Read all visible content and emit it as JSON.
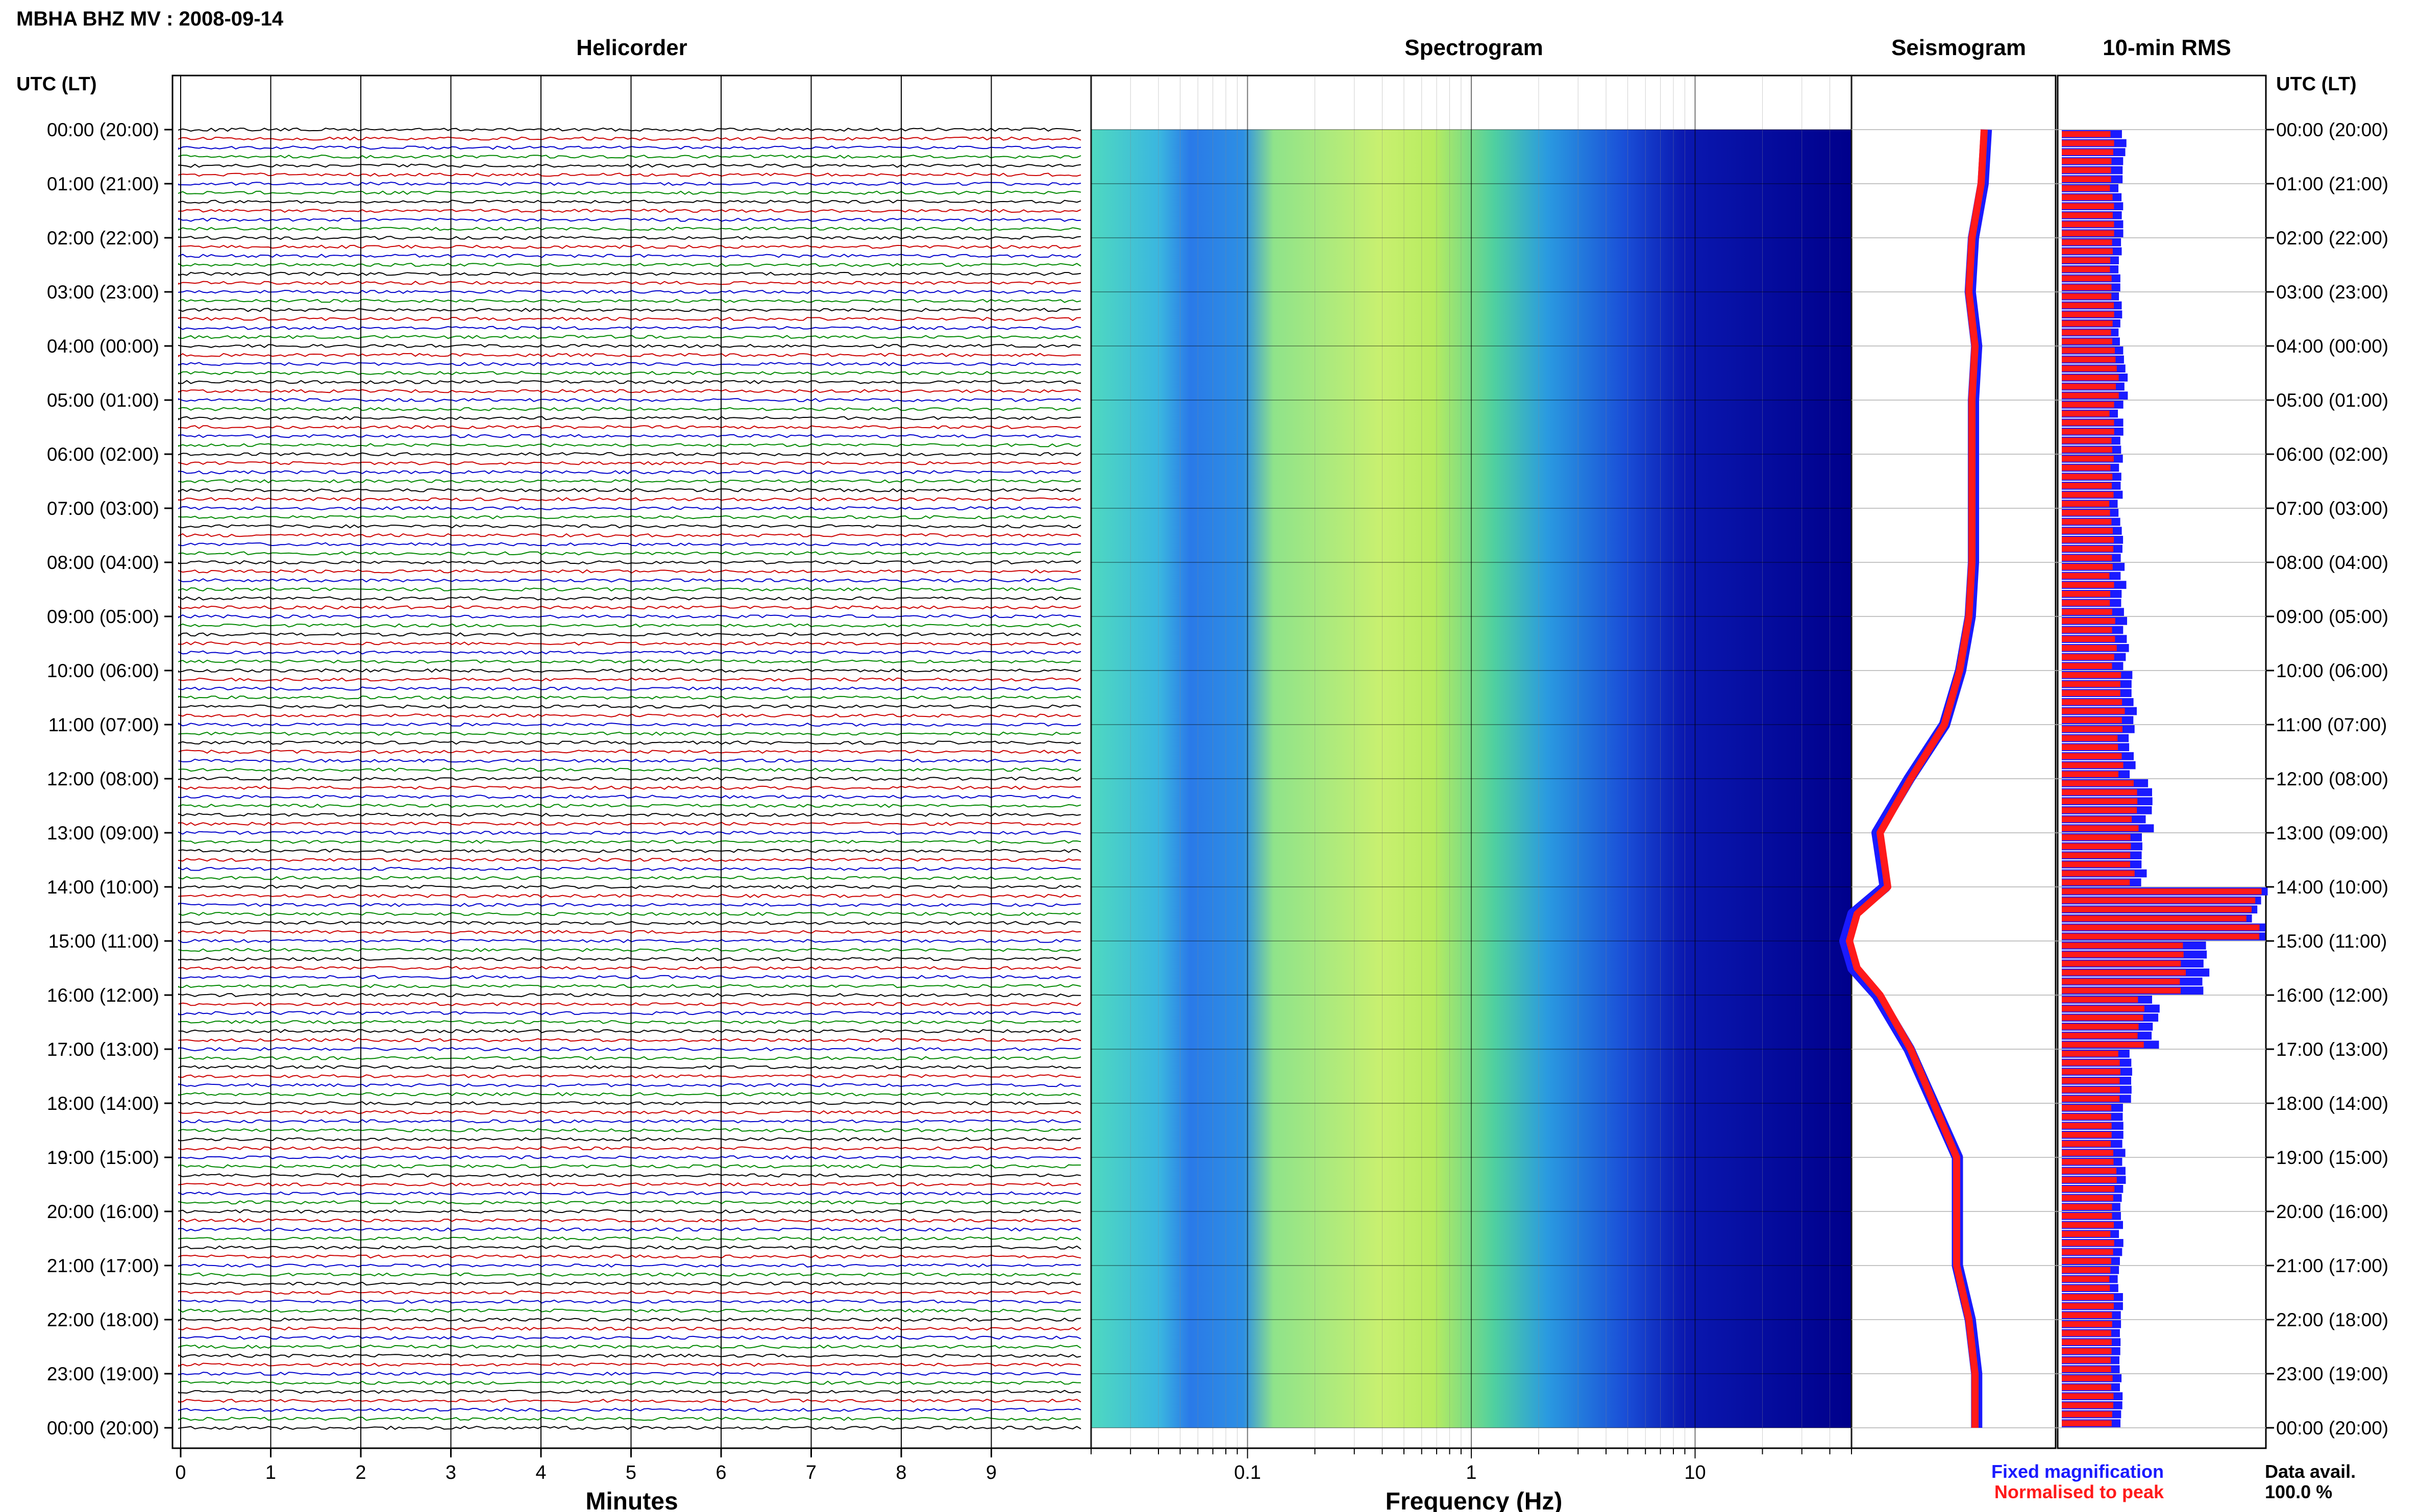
{
  "title": "MBHA BHZ MV : 2008-09-14",
  "panels": {
    "helicorder": "Helicorder",
    "spectrogram": "Spectrogram",
    "seismogram": "Seismogram",
    "rms": "10-min RMS"
  },
  "time_axis_header": "UTC (LT)",
  "time_labels": [
    "00:00 (20:00)",
    "01:00 (21:00)",
    "02:00 (22:00)",
    "03:00 (23:00)",
    "04:00 (00:00)",
    "05:00 (01:00)",
    "06:00 (02:00)",
    "07:00 (03:00)",
    "08:00 (04:00)",
    "09:00 (05:00)",
    "10:00 (06:00)",
    "11:00 (07:00)",
    "12:00 (08:00)",
    "13:00 (09:00)",
    "14:00 (10:00)",
    "15:00 (11:00)",
    "16:00 (12:00)",
    "17:00 (13:00)",
    "18:00 (14:00)",
    "19:00 (15:00)",
    "20:00 (16:00)",
    "21:00 (17:00)",
    "22:00 (18:00)",
    "23:00 (19:00)",
    "00:00 (20:00)"
  ],
  "helicorder_xlabel": "Minutes",
  "helicorder_ticks": [
    "0",
    "1",
    "2",
    "3",
    "4",
    "5",
    "6",
    "7",
    "8",
    "9"
  ],
  "spectrogram_xlabel": "Frequency (Hz)",
  "spectrogram_ticks": [
    "0.1",
    "1",
    "10"
  ],
  "legend": {
    "fixed": "Fixed magnification",
    "normalised": "Normalised to peak",
    "fixed_color": "#1a1aff",
    "normalised_color": "#ff1a1a"
  },
  "availability": {
    "label": "Data avail.",
    "value": "100.0 %"
  },
  "colors": {
    "trace_cycle": [
      "#000000",
      "#cc0000",
      "#0000cc",
      "#008800"
    ],
    "spec_low": "#00008b",
    "spec_high": "#e6ff40"
  },
  "chart_data": {
    "type": "bar",
    "title": "10-min RMS",
    "x_unit": "hour UTC",
    "x": [
      0,
      1,
      2,
      3,
      4,
      5,
      6,
      7,
      8,
      9,
      10,
      11,
      12,
      13,
      14,
      15,
      16,
      17,
      18,
      19,
      20,
      21,
      22,
      23
    ],
    "series": [
      {
        "name": "Fixed magnification",
        "values": [
          1.05,
          1.0,
          1.0,
          0.98,
          1.1,
          1.0,
          1.0,
          1.0,
          1.05,
          1.1,
          1.25,
          1.2,
          1.5,
          1.4,
          3.4,
          2.5,
          1.6,
          1.2,
          1.05,
          1.05,
          1.0,
          1.0,
          1.0,
          1.0
        ]
      },
      {
        "name": "Normalised to peak",
        "values": [
          0.85,
          0.85,
          0.85,
          0.85,
          0.95,
          0.85,
          0.85,
          0.85,
          0.85,
          0.9,
          1.05,
          1.0,
          1.25,
          1.2,
          3.3,
          2.1,
          1.35,
          1.0,
          0.85,
          0.9,
          0.85,
          0.85,
          0.85,
          0.85
        ]
      }
    ],
    "seismogram_envelope": {
      "x": [
        0,
        1,
        2,
        3,
        4,
        5,
        6,
        7,
        8,
        9,
        10,
        11,
        12,
        13,
        14,
        14.5,
        15,
        15.5,
        16,
        17,
        18,
        19,
        20,
        21,
        22,
        23,
        24
      ],
      "values": [
        0.12,
        0.14,
        0.2,
        0.22,
        0.18,
        0.2,
        0.2,
        0.2,
        0.2,
        0.22,
        0.28,
        0.38,
        0.6,
        0.8,
        0.75,
        0.95,
        1.0,
        0.95,
        0.8,
        0.6,
        0.45,
        0.3,
        0.3,
        0.3,
        0.22,
        0.18,
        0.18
      ]
    }
  }
}
